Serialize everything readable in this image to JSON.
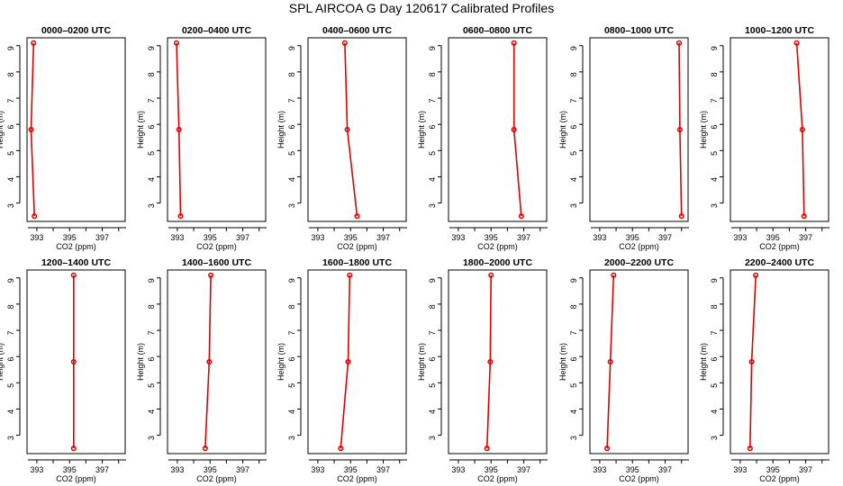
{
  "title": "SPL AIRCOA G  Day 120617  Calibrated Profiles",
  "colors": {
    "series": "#e00000",
    "axis": "#000000"
  },
  "chart_data": [
    {
      "type": "line",
      "title": "0000–0200 UTC",
      "xlabel": "CO2 (ppm)",
      "ylabel": "Height (m)",
      "xlim": [
        392.4,
        398.4
      ],
      "ylim": [
        2.3,
        9.3
      ],
      "xticks": [
        393,
        395,
        397
      ],
      "yticks": [
        3,
        4,
        5,
        6,
        7,
        8,
        9
      ],
      "series": [
        {
          "x": [
            392.85,
            392.65,
            392.8
          ],
          "y": [
            2.5,
            5.8,
            9.1
          ]
        }
      ]
    },
    {
      "type": "line",
      "title": "0200–0400 UTC",
      "xlabel": "CO2 (ppm)",
      "ylabel": "Height (m)",
      "xlim": [
        392.4,
        398.4
      ],
      "ylim": [
        2.3,
        9.3
      ],
      "xticks": [
        393,
        395,
        397
      ],
      "yticks": [
        3,
        4,
        5,
        6,
        7,
        8,
        9
      ],
      "series": [
        {
          "x": [
            393.2,
            393.1,
            392.95
          ],
          "y": [
            2.5,
            5.8,
            9.1
          ]
        }
      ]
    },
    {
      "type": "line",
      "title": "0400–0600 UTC",
      "xlabel": "CO2 (ppm)",
      "ylabel": "Height (m)",
      "xlim": [
        392.4,
        398.4
      ],
      "ylim": [
        2.3,
        9.3
      ],
      "xticks": [
        393,
        395,
        397
      ],
      "yticks": [
        3,
        4,
        5,
        6,
        7,
        8,
        9
      ],
      "series": [
        {
          "x": [
            395.4,
            394.8,
            394.65
          ],
          "y": [
            2.5,
            5.8,
            9.1
          ]
        }
      ]
    },
    {
      "type": "line",
      "title": "0600–0800 UTC",
      "xlabel": "CO2 (ppm)",
      "ylabel": "Height (m)",
      "xlim": [
        392.4,
        398.4
      ],
      "ylim": [
        2.3,
        9.3
      ],
      "xticks": [
        393,
        395,
        397
      ],
      "yticks": [
        3,
        4,
        5,
        6,
        7,
        8,
        9
      ],
      "series": [
        {
          "x": [
            396.85,
            396.4,
            396.4
          ],
          "y": [
            2.5,
            5.8,
            9.1
          ]
        }
      ]
    },
    {
      "type": "line",
      "title": "0800–1000 UTC",
      "xlabel": "CO2 (ppm)",
      "ylabel": "Height (m)",
      "xlim": [
        392.4,
        398.4
      ],
      "ylim": [
        2.3,
        9.3
      ],
      "xticks": [
        393,
        395,
        397
      ],
      "yticks": [
        3,
        4,
        5,
        6,
        7,
        8,
        9
      ],
      "series": [
        {
          "x": [
            398.0,
            397.9,
            397.85
          ],
          "y": [
            2.5,
            5.8,
            9.1
          ]
        }
      ]
    },
    {
      "type": "line",
      "title": "1000–1200 UTC",
      "xlabel": "CO2 (ppm)",
      "ylabel": "Height (m)",
      "xlim": [
        392.4,
        398.4
      ],
      "ylim": [
        2.3,
        9.3
      ],
      "xticks": [
        393,
        395,
        397
      ],
      "yticks": [
        3,
        4,
        5,
        6,
        7,
        8,
        9
      ],
      "series": [
        {
          "x": [
            396.9,
            396.8,
            396.45
          ],
          "y": [
            2.5,
            5.8,
            9.1
          ]
        }
      ]
    },
    {
      "type": "line",
      "title": "1200–1400 UTC",
      "xlabel": "CO2 (ppm)",
      "ylabel": "Height (m)",
      "xlim": [
        392.4,
        398.4
      ],
      "ylim": [
        2.3,
        9.3
      ],
      "xticks": [
        393,
        395,
        397
      ],
      "yticks": [
        3,
        4,
        5,
        6,
        7,
        8,
        9
      ],
      "series": [
        {
          "x": [
            395.25,
            395.25,
            395.25
          ],
          "y": [
            2.5,
            5.8,
            9.1
          ]
        }
      ]
    },
    {
      "type": "line",
      "title": "1400–1600 UTC",
      "xlabel": "CO2 (ppm)",
      "ylabel": "Height (m)",
      "xlim": [
        392.4,
        398.4
      ],
      "ylim": [
        2.3,
        9.3
      ],
      "xticks": [
        393,
        395,
        397
      ],
      "yticks": [
        3,
        4,
        5,
        6,
        7,
        8,
        9
      ],
      "series": [
        {
          "x": [
            394.7,
            394.95,
            395.05
          ],
          "y": [
            2.5,
            5.8,
            9.1
          ]
        }
      ]
    },
    {
      "type": "line",
      "title": "1600–1800 UTC",
      "xlabel": "CO2 (ppm)",
      "ylabel": "Height (m)",
      "xlim": [
        392.4,
        398.4
      ],
      "ylim": [
        2.3,
        9.3
      ],
      "xticks": [
        393,
        395,
        397
      ],
      "yticks": [
        3,
        4,
        5,
        6,
        7,
        8,
        9
      ],
      "series": [
        {
          "x": [
            394.4,
            394.85,
            394.95
          ],
          "y": [
            2.5,
            5.8,
            9.1
          ]
        }
      ]
    },
    {
      "type": "line",
      "title": "1800–2000 UTC",
      "xlabel": "CO2 (ppm)",
      "ylabel": "Height (m)",
      "xlim": [
        392.4,
        398.4
      ],
      "ylim": [
        2.3,
        9.3
      ],
      "xticks": [
        393,
        395,
        397
      ],
      "yticks": [
        3,
        4,
        5,
        6,
        7,
        8,
        9
      ],
      "series": [
        {
          "x": [
            394.75,
            394.95,
            395.0
          ],
          "y": [
            2.5,
            5.8,
            9.1
          ]
        }
      ]
    },
    {
      "type": "line",
      "title": "2000–2200 UTC",
      "xlabel": "CO2 (ppm)",
      "ylabel": "Height (m)",
      "xlim": [
        392.4,
        398.4
      ],
      "ylim": [
        2.3,
        9.3
      ],
      "xticks": [
        393,
        395,
        397
      ],
      "yticks": [
        3,
        4,
        5,
        6,
        7,
        8,
        9
      ],
      "series": [
        {
          "x": [
            393.45,
            393.65,
            393.85
          ],
          "y": [
            2.5,
            5.8,
            9.1
          ]
        }
      ]
    },
    {
      "type": "line",
      "title": "2200–2400 UTC",
      "xlabel": "CO2 (ppm)",
      "ylabel": "Height (m)",
      "xlim": [
        392.4,
        398.4
      ],
      "ylim": [
        2.3,
        9.3
      ],
      "xticks": [
        393,
        395,
        397
      ],
      "yticks": [
        3,
        4,
        5,
        6,
        7,
        8,
        9
      ],
      "series": [
        {
          "x": [
            393.6,
            393.7,
            393.95
          ],
          "y": [
            2.5,
            5.8,
            9.1
          ]
        }
      ]
    }
  ]
}
